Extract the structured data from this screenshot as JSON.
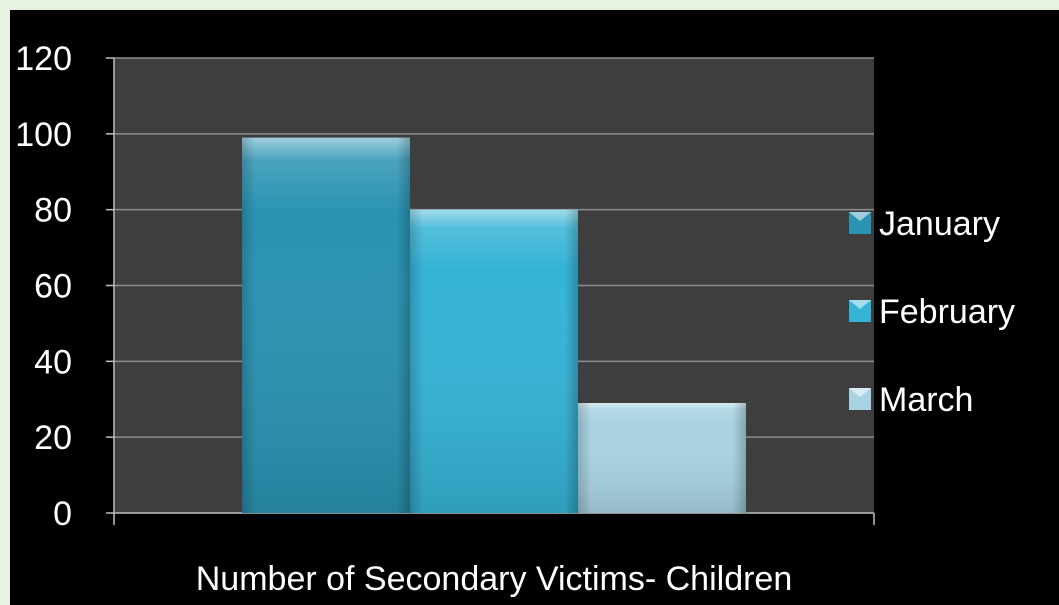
{
  "chart_data": {
    "type": "bar",
    "categories": [
      "Number of Secondary Victims- Children"
    ],
    "series": [
      {
        "name": "January",
        "values": [
          99
        ],
        "color": "#2a93b2"
      },
      {
        "name": "February",
        "values": [
          80
        ],
        "color": "#35b3d6"
      },
      {
        "name": "March",
        "values": [
          29
        ],
        "color": "#a9d3e3"
      }
    ],
    "ylim": [
      0,
      120
    ],
    "yticks": [
      "0",
      "20",
      "40",
      "60",
      "80",
      "100",
      "120"
    ],
    "grid": true,
    "legend_position": "right",
    "plot_background": "#3e3e3e",
    "background": "#000000"
  }
}
